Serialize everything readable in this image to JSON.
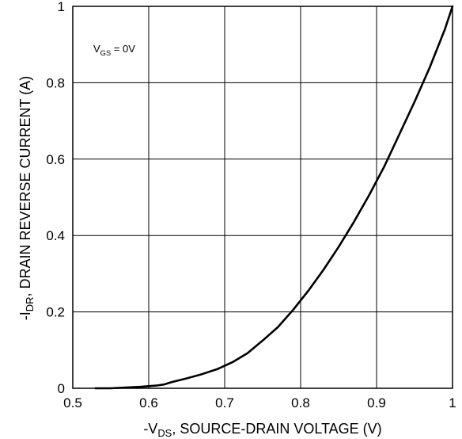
{
  "chart_data": {
    "type": "line",
    "title": "",
    "xlabel_parts": [
      "-V",
      "DS",
      ", SOURCE-DRAIN VOLTAGE (V)"
    ],
    "ylabel_parts": [
      "-I",
      "DR",
      ", DRAIN REVERSE CURRENT (A)"
    ],
    "annotation_parts": [
      "V",
      "GS",
      " = 0V"
    ],
    "xlim": [
      0.5,
      1.0
    ],
    "ylim": [
      0,
      1.0
    ],
    "x_ticks": [
      "0.5",
      "0.6",
      "0.7",
      "0.8",
      "0.9",
      "1"
    ],
    "y_ticks": [
      "0",
      "0.2",
      "0.4",
      "0.6",
      "0.8",
      "1"
    ],
    "grid": true,
    "series": [
      {
        "x": [
          0.53,
          0.55,
          0.57,
          0.59,
          0.61,
          0.62,
          0.63,
          0.65,
          0.67,
          0.69,
          0.71,
          0.73,
          0.75,
          0.77,
          0.79,
          0.81,
          0.83,
          0.85,
          0.87,
          0.89,
          0.91,
          0.93,
          0.95,
          0.97,
          0.99,
          1.0
        ],
        "y": [
          0.0,
          0.0,
          0.002,
          0.004,
          0.007,
          0.01,
          0.016,
          0.026,
          0.037,
          0.05,
          0.068,
          0.092,
          0.125,
          0.16,
          0.205,
          0.255,
          0.31,
          0.37,
          0.435,
          0.505,
          0.58,
          0.665,
          0.75,
          0.84,
          0.94,
          1.0
        ]
      }
    ]
  }
}
